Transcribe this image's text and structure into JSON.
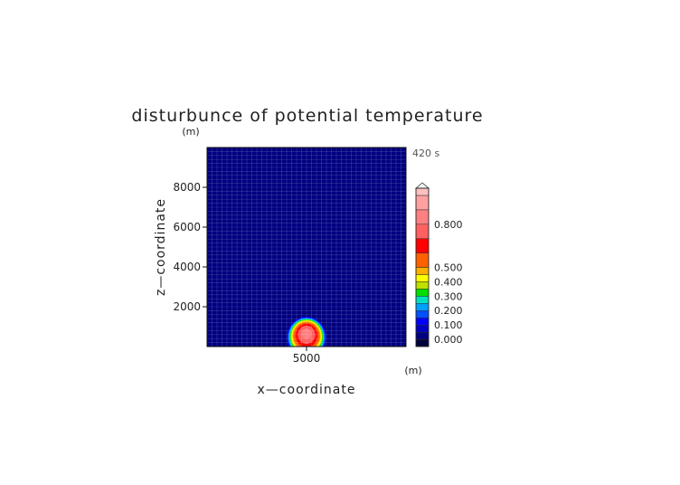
{
  "chart_data": {
    "type": "heatmap",
    "title": "disturbunce of potential temperature",
    "time_label": "420 s",
    "xlabel": "x—coordinate",
    "ylabel": "z—coordinate",
    "x_unit": "(m)",
    "y_unit": "(m)",
    "xlim": [
      0,
      10000
    ],
    "ylim": [
      0,
      10000
    ],
    "x_ticks": [
      {
        "value": 5000,
        "label": "5000"
      }
    ],
    "y_ticks": [
      {
        "value": 2000,
        "label": "2000"
      },
      {
        "value": 4000,
        "label": "4000"
      },
      {
        "value": 6000,
        "label": "6000"
      },
      {
        "value": 8000,
        "label": "8000"
      }
    ],
    "grid": true,
    "colorbar": {
      "levels": [
        {
          "value": -0.05,
          "color": "#00003a"
        },
        {
          "value": 0.0,
          "color": "#000080"
        },
        {
          "value": 0.05,
          "color": "#0000c0"
        },
        {
          "value": 0.1,
          "color": "#0000ff"
        },
        {
          "value": 0.15,
          "color": "#0050ff"
        },
        {
          "value": 0.2,
          "color": "#00a0ff"
        },
        {
          "value": 0.25,
          "color": "#00e0c0"
        },
        {
          "value": 0.3,
          "color": "#00e000"
        },
        {
          "value": 0.35,
          "color": "#c0e000"
        },
        {
          "value": 0.4,
          "color": "#ffff00"
        },
        {
          "value": 0.45,
          "color": "#ffb000"
        },
        {
          "value": 0.5,
          "color": "#ff6000"
        },
        {
          "value": 0.6,
          "color": "#ff0000"
        },
        {
          "value": 0.7,
          "color": "#ff6060"
        },
        {
          "value": 0.8,
          "color": "#ff8080"
        },
        {
          "value": 0.9,
          "color": "#ffa0a0"
        },
        {
          "value": 1.0,
          "color": "#ffc0c0"
        }
      ],
      "tick_labels": [
        {
          "value": 0.0,
          "label": "0.000"
        },
        {
          "value": 0.1,
          "label": "0.100"
        },
        {
          "value": 0.2,
          "label": "0.200"
        },
        {
          "value": 0.3,
          "label": "0.300"
        },
        {
          "value": 0.4,
          "label": "0.400"
        },
        {
          "value": 0.5,
          "label": "0.500"
        },
        {
          "value": 0.8,
          "label": "0.800"
        }
      ]
    },
    "field": {
      "background_value": 0.02,
      "thermal_bubble": {
        "center_x": 5000,
        "center_z": 700,
        "radius_x": 900,
        "radius_z": 900,
        "peak": 0.85
      }
    }
  }
}
